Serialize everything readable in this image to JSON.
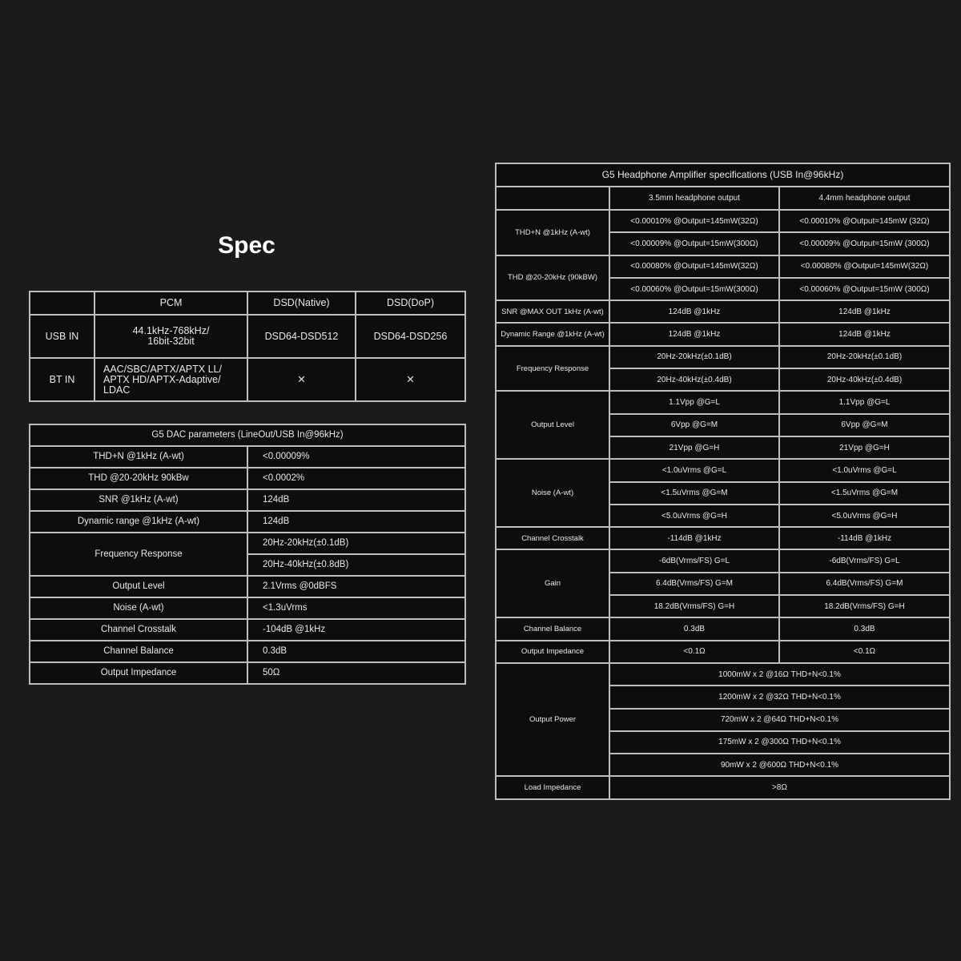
{
  "spec_title": "Spec",
  "input_table": {
    "headers": [
      "",
      "PCM",
      "DSD(Native)",
      "DSD(DoP)"
    ],
    "rows": [
      {
        "label": "USB IN",
        "pcm": "44.1kHz-768kHz/ 16bit-32bit",
        "dsd_native": "DSD64-DSD512",
        "dsd_dop": "DSD64-DSD256"
      },
      {
        "label": "BT IN",
        "pcm": "AAC/SBC/APTX/APTX LL/ APTX HD/APTX-Adaptive/ LDAC",
        "dsd_native": "✕",
        "dsd_dop": "✕"
      }
    ],
    "unsupported_icon": "cross-icon"
  },
  "dac_table": {
    "title": "G5 DAC parameters (LineOut/USB In@96kHz)",
    "rows": [
      {
        "label": "THD+N @1kHz (A-wt)",
        "values": [
          "<0.00009%"
        ]
      },
      {
        "label": "THD @20-20kHz 90kBw",
        "values": [
          "<0.0002%"
        ]
      },
      {
        "label": "SNR @1kHz (A-wt)",
        "values": [
          "124dB"
        ]
      },
      {
        "label": "Dynamic range @1kHz (A-wt)",
        "values": [
          "124dB"
        ]
      },
      {
        "label": "Frequency Response",
        "values": [
          "20Hz-20kHz(±0.1dB)",
          "20Hz-40kHz(±0.8dB)"
        ]
      },
      {
        "label": "Output Level",
        "values": [
          "2.1Vrms @0dBFS"
        ]
      },
      {
        "label": "Noise (A-wt)",
        "values": [
          "<1.3uVrms"
        ]
      },
      {
        "label": "Channel Crosstalk",
        "values": [
          "-104dB @1kHz"
        ]
      },
      {
        "label": "Channel Balance",
        "values": [
          "0.3dB"
        ]
      },
      {
        "label": "Output Impedance",
        "values": [
          "50Ω"
        ]
      }
    ]
  },
  "amp_table": {
    "title": "G5 Headphone Amplifier specifications (USB In@96kHz)",
    "headers": [
      "",
      "3.5mm headphone output",
      "4.4mm headphone output"
    ],
    "rows": [
      {
        "label": "THD+N @1kHz (A-wt)",
        "values": [
          [
            "<0.00010% @Output=145mW(32Ω)",
            "<0.00010% @Output=145mW (32Ω)"
          ],
          [
            "<0.00009% @Output=15mW(300Ω)",
            "<0.00009% @Output=15mW (300Ω)"
          ]
        ]
      },
      {
        "label": "THD @20-20kHz (90kBW)",
        "values": [
          [
            "<0.00080% @Output=145mW(32Ω)",
            "<0.00080% @Output=145mW(32Ω)"
          ],
          [
            "<0.00060% @Output=15mW(300Ω)",
            "<0.00060% @Output=15mW (300Ω)"
          ]
        ]
      },
      {
        "label": "SNR @MAX OUT 1kHz (A-wt)",
        "values": [
          [
            "124dB @1kHz",
            "124dB @1kHz"
          ]
        ]
      },
      {
        "label": "Dynamic Range @1kHz (A-wt)",
        "values": [
          [
            "124dB @1kHz",
            "124dB @1kHz"
          ]
        ]
      },
      {
        "label": "Frequency Response",
        "values": [
          [
            "20Hz-20kHz(±0.1dB)",
            "20Hz-20kHz(±0.1dB)"
          ],
          [
            "20Hz-40kHz(±0.4dB)",
            "20Hz-40kHz(±0.4dB)"
          ]
        ]
      },
      {
        "label": "Output Level",
        "values": [
          [
            "1.1Vpp @G=L",
            "1.1Vpp @G=L"
          ],
          [
            "6Vpp @G=M",
            "6Vpp @G=M"
          ],
          [
            "21Vpp @G=H",
            "21Vpp @G=H"
          ]
        ]
      },
      {
        "label": "Noise (A-wt)",
        "values": [
          [
            "<1.0uVrms @G=L",
            "<1.0uVrms @G=L"
          ],
          [
            "<1.5uVrms @G=M",
            "<1.5uVrms @G=M"
          ],
          [
            "<5.0uVrms @G=H",
            "<5.0uVrms @G=H"
          ]
        ]
      },
      {
        "label": "Channel Crosstalk",
        "values": [
          [
            "-114dB @1kHz",
            "-114dB @1kHz"
          ]
        ]
      },
      {
        "label": "Gain",
        "values": [
          [
            "-6dB(Vrms/FS) G=L",
            "-6dB(Vrms/FS) G=L"
          ],
          [
            "6.4dB(Vrms/FS) G=M",
            "6.4dB(Vrms/FS) G=M"
          ],
          [
            "18.2dB(Vrms/FS) G=H",
            "18.2dB(Vrms/FS) G=H"
          ]
        ]
      },
      {
        "label": "Channel Balance",
        "values": [
          [
            "0.3dB",
            "0.3dB"
          ]
        ]
      },
      {
        "label": "Output Impedance",
        "values": [
          [
            "<0.1Ω",
            "<0.1Ω"
          ]
        ]
      },
      {
        "label": "Output Power",
        "values": [
          [
            "1000mW x 2 @16Ω THD+N<0.1%"
          ],
          [
            "1200mW x 2 @32Ω THD+N<0.1%"
          ],
          [
            "720mW x 2 @64Ω THD+N<0.1%"
          ],
          [
            "175mW x 2 @300Ω THD+N<0.1%"
          ],
          [
            "90mW x 2 @600Ω THD+N<0.1%"
          ]
        ]
      },
      {
        "label": "Load Impedance",
        "values": [
          [
            ">8Ω"
          ]
        ]
      }
    ]
  },
  "colors": {
    "background": "#1b1b1b",
    "cell": "#0d0d0d",
    "border": "#bdbdbd",
    "text": "#e8e8e8"
  }
}
